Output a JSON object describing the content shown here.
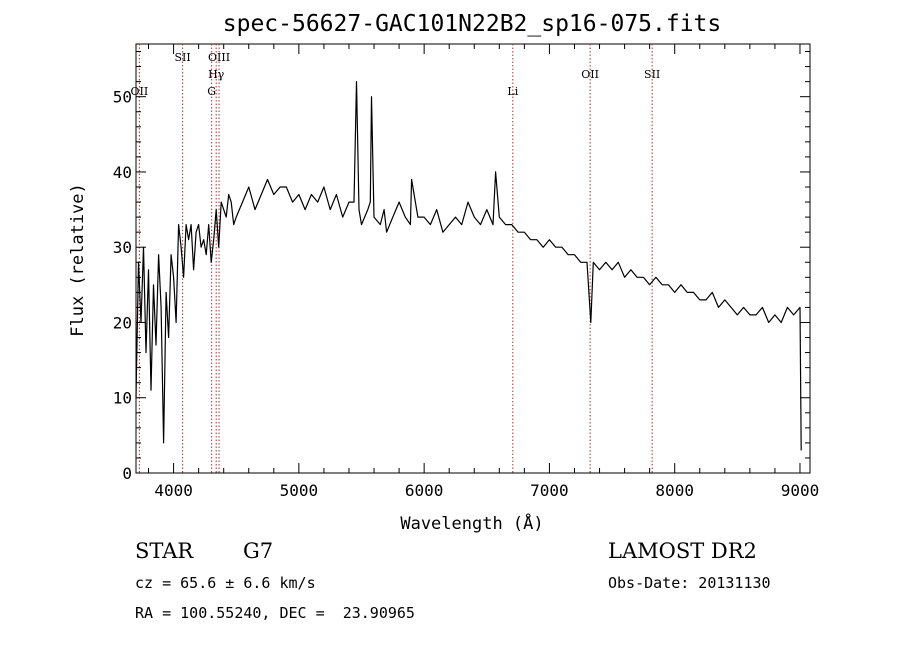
{
  "chart_data": {
    "type": "line",
    "title": "spec-56627-GAC101N22B2_sp16-075.fits",
    "xlabel": "Wavelength (Å)",
    "ylabel": "Flux (relative)",
    "xlim": [
      3700,
      9080
    ],
    "ylim": [
      0,
      57
    ],
    "xticks": [
      4000,
      5000,
      6000,
      7000,
      8000,
      9000
    ],
    "yticks": [
      0,
      10,
      20,
      30,
      40,
      50
    ],
    "line_color": "#000000",
    "marker_color": "#b03030",
    "lines": [
      {
        "label": "OII",
        "x": 3727,
        "row": 3
      },
      {
        "label": "SII",
        "x": 4072,
        "row": 1
      },
      {
        "label": "G",
        "x": 4304,
        "row": 3
      },
      {
        "label": "Hγ",
        "x": 4340,
        "row": 2
      },
      {
        "label": "OIII",
        "x": 4363,
        "row": 1
      },
      {
        "label": "Li",
        "x": 6708,
        "row": 3
      },
      {
        "label": "OII",
        "x": 7325,
        "row": 2
      },
      {
        "label": "SII",
        "x": 7820,
        "row": 2
      }
    ],
    "series": [
      {
        "x": [
          3700,
          3720,
          3740,
          3760,
          3780,
          3800,
          3820,
          3840,
          3860,
          3880,
          3900,
          3920,
          3940,
          3960,
          3980,
          4000,
          4020,
          4040,
          4060,
          4080,
          4100,
          4120,
          4140,
          4160,
          4180,
          4200,
          4220,
          4240,
          4260,
          4280,
          4300,
          4320,
          4340,
          4360,
          4380,
          4400,
          4420,
          4440,
          4460,
          4480,
          4500,
          4550,
          4600,
          4650,
          4700,
          4750,
          4800,
          4850,
          4900,
          4950,
          5000,
          5050,
          5100,
          5150,
          5200,
          5250,
          5300,
          5350,
          5400,
          5440,
          5460,
          5480,
          5500,
          5550,
          5570,
          5580,
          5600,
          5650,
          5680,
          5700,
          5750,
          5800,
          5850,
          5890,
          5900,
          5950,
          6000,
          6050,
          6100,
          6150,
          6200,
          6250,
          6300,
          6350,
          6400,
          6450,
          6500,
          6550,
          6570,
          6600,
          6650,
          6700,
          6750,
          6800,
          6850,
          6900,
          6950,
          7000,
          7050,
          7100,
          7150,
          7200,
          7250,
          7300,
          7330,
          7350,
          7400,
          7450,
          7500,
          7550,
          7600,
          7650,
          7700,
          7750,
          7800,
          7850,
          7900,
          7950,
          8000,
          8050,
          8100,
          8150,
          8200,
          8250,
          8300,
          8350,
          8400,
          8450,
          8500,
          8550,
          8600,
          8650,
          8700,
          8750,
          8800,
          8850,
          8900,
          8950,
          9000,
          9010
        ],
        "y": [
          10,
          28,
          20,
          30,
          16,
          27,
          11,
          25,
          17,
          29,
          22,
          4,
          24,
          18,
          29,
          26,
          20,
          33,
          30,
          26,
          33,
          31,
          33,
          27,
          32,
          33,
          30,
          31,
          29,
          33,
          28,
          31,
          35,
          30,
          36,
          35,
          34,
          37,
          36,
          33,
          34,
          36,
          38,
          35,
          37,
          39,
          37,
          38,
          38,
          36,
          37,
          35,
          37,
          36,
          38,
          35,
          37,
          34,
          36,
          36,
          52,
          35,
          33,
          35,
          36,
          50,
          34,
          33,
          35,
          32,
          34,
          36,
          34,
          33,
          39,
          34,
          34,
          33,
          35,
          32,
          33,
          34,
          33,
          36,
          34,
          33,
          35,
          33,
          40,
          34,
          33,
          33,
          32,
          32,
          31,
          31,
          30,
          31,
          30,
          30,
          29,
          29,
          28,
          28,
          20,
          28,
          27,
          28,
          27,
          28,
          26,
          27,
          26,
          26,
          25,
          26,
          25,
          25,
          24,
          25,
          24,
          24,
          23,
          23,
          24,
          22,
          23,
          22,
          21,
          22,
          21,
          21,
          22,
          20,
          21,
          20,
          22,
          21,
          22,
          3
        ]
      }
    ]
  },
  "info": {
    "object_class": "STAR",
    "subclass": "G7",
    "survey": "LAMOST DR2",
    "redshift": "cz = 65.6 ± 6.6 km/s",
    "obs_date": "Obs-Date: 20131130",
    "coords": "RA = 100.55240, DEC =  23.90965"
  }
}
